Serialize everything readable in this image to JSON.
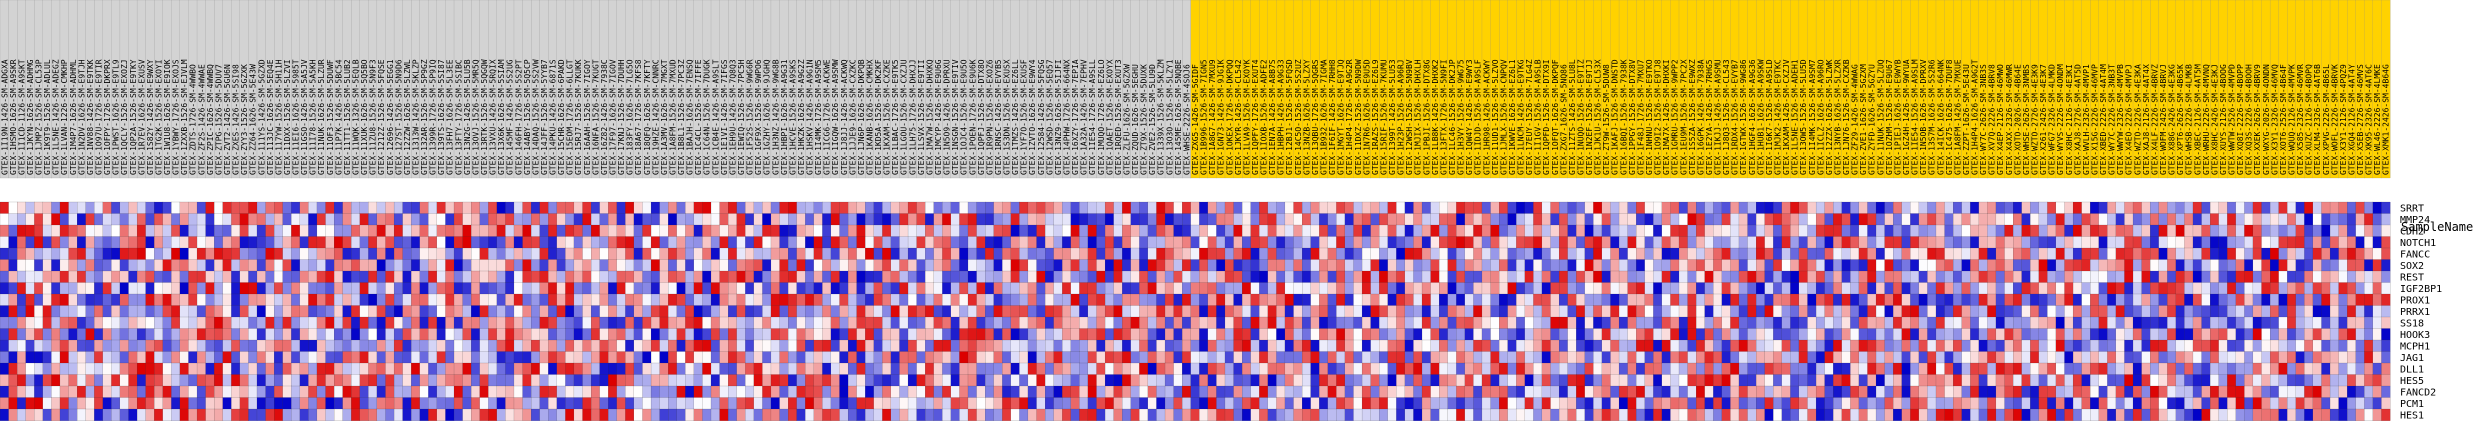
{
  "chart_data": {
    "type": "heatmap",
    "row_axis_label": "SampleName",
    "color_scale": {
      "low": "#0000c8",
      "mid": "#ffffff",
      "high": "#dc0000",
      "min": -1,
      "max": 1
    },
    "group_colors": {
      "normal": "#d3d3d3",
      "highlight": "#ffd200"
    },
    "rows": [
      "SRRT",
      "MMP24",
      "CDH2",
      "NOTCH1",
      "FANCC",
      "SOX2",
      "REST",
      "IGF2BP1",
      "PROX1",
      "PRRX1",
      "SS18",
      "HOOK3",
      "MCPH1",
      "JAG1",
      "DLL1",
      "HES5",
      "FANCD2",
      "PCM1",
      "HES1"
    ],
    "column_groups": [
      {
        "group": "normal",
        "columns": [
          "GTEX-1I19N-1426-SM-ADGXA",
          "GTEX-1HSMO-1626-SM-A9SKR",
          "GTEX-1I1CD-1126-SM-A9SKT",
          "GTEX-1JKYN-1626-SM-ADHMG",
          "GTEX-1JMPZ-1526-SM-CL53P",
          "GTEX-1K9T9-1526-SM-ADLUL",
          "GTEX-1L5NE-1426-SM-ADEGZ",
          "GTEX-1LVAN-1226-SM-CMKHP",
          "GTEX-1M4P7-1626-SM-ADHML",
          "GTEX-1N2DV-1626-SM-E9TJH",
          "GTEX-1NV88-1426-SM-E9TKK",
          "GTEX-1O97U-1726-SM-E9TIR",
          "GTEX-1OFPY-1726-SM-DKPRX",
          "GTEX-1PWST-1626-SM-E9TL9",
          "GTEX-1QCLY-1526-SM-EXOZJ",
          "GTEX-1QP2A-1526-SM-E9TKY",
          "GTEX-1R7EV-1626-SM-EXUSV",
          "GTEX-1S82Y-1426-SM-E9WXY",
          "GTEX-1TG2K-1526-SM-EXOYI",
          "GTEX-1W1U8-1626-SM-E9IOK",
          "GTEX-1YBWY-1726-SM-EXOJS",
          "GTEX-1ZXXB-1526-SM-EJVLM",
          "GTEX-ZDTS-1726-SM-4WWBO",
          "GTEX-ZF2S-1426-SM-4WWAE",
          "GTEX-ZPIC-1626-SM-4WWBQ",
          "GTEX-ZTPG-1526-SM-5DUV7",
          "GTEX-ZVT2-1426-SM-5GU6N",
          "GTEX-ZXES-1426-SM-5SI98",
          "GTEX-ZYY3-1526-SM-5GZXK",
          "GTEX-ZZ64-1626-SM-5E43W",
          "GTEX-111YS-1426-SM-5GZXD",
          "GTEX-113JC-1626-SM-5EQ4E",
          "GTEX-117YW-1526-SM-5H11H",
          "GTEX-11DXX-1526-SM-5LZVI",
          "GTEX-11EI6-1626-SM-5985T",
          "GTEX-11GSO-1426-SM-5A5JV",
          "GTEX-11I78-1526-SM-5A5KH",
          "GTEX-11NUK-1626-SM-5LZUR",
          "GTEX-11OF3-1526-SM-5DUWF",
          "GTEX-11P7K-1426-SM-5BC54",
          "GTEX-11TT1-1526-SM-5LUB2",
          "GTEX-11WQK-1326-SM-5EQLB",
          "GTEX-11XUK-1626-SM-5Q5BO",
          "GTEX-11ZU8-1526-SM-5N9F3",
          "GTEX-1212Z-1526-SM-5FQSE",
          "GTEX-12696-1426-SM-5EGG1",
          "GTEX-127ST-1526-SM-5N9D6",
          "GTEX-12ZZW-1626-SM-5LZWL",
          "GTEX-1313W-1426-SM-5KLZP",
          "GTEX-132AR-1526-SM-5P9GZ",
          "GTEX-1399R-1726-SM-5P9IQ",
          "GTEX-139TS-1626-SM-5SI87",
          "GTEX-13FH7-1626-SM-5L3EE",
          "GTEX-13FTY-1726-SM-5SIBC",
          "GTEX-13N2G-1426-SM-5LU5B",
          "GTEX-13OVJ-1526-SM-5MR5Q",
          "GTEX-13RTK-1526-SM-5QGQW",
          "GTEX-13VXU-1426-SM-5RQIX",
          "GTEX-13X6K-1626-SM-5SIAM",
          "GTEX-145MF-1426-SM-5S2UG",
          "GTEX-146FH-1726-SM-5S2PT",
          "GTEX-14ABY-1526-SM-5Q5CP",
          "GTEX-14DAQ-1526-SM-5S2VW",
          "GTEX-14JFF-1526-SM-5YYB7",
          "GTEX-14PKU-1426-SM-6871S",
          "GTEX-15CHR-1626-SM-6PAKD",
          "GTEX-15EOM-1726-SM-6LLGT",
          "GTEX-15RJ7-1526-SM-7KUKK",
          "GTEX-16AAH-1526-SM-7IGOY",
          "GTEX-16NFA-1526-SM-7KUGT",
          "GTEX-16Z82-1426-SM-7938C",
          "GTEX-17F97-1626-SM-7IGOV",
          "GTEX-17KNJ-1526-SM-7DUHH",
          "GTEX-183FY-1626-SM-7LG5O",
          "GTEX-18A67-1726-SM-7KFS8",
          "GTEX-18QFQ-1626-SM-7KFTY",
          "GTEX-19HZE-1426-SM-CNNRC",
          "GTEX-1A3MV-1626-SM-7MGXT",
          "GTEX-1A8FM-1526-SM-7MXUD",
          "GTEX-1B8L1-1526-SM-7PC3Z",
          "GTEX-1BAJH-1626-SM-7ENSQ",
          "GTEX-1C4CL-1526-SM-7IFFE",
          "GTEX-1C64N-1526-SM-7DUGK",
          "GTEX-1CB4E-1426-SM-A9SLT",
          "GTEX-1E1VI-1426-SM-7IFGS",
          "GTEX-1EH9U-1426-SM-7Q8Q3",
          "GTEX-1EWIQ-1526-SM-7PC5H",
          "GTEX-1F52S-1526-SM-9WG6R",
          "GTEX-1GF9X-1526-SM-9WPO6",
          "GTEX-1GZHY-1626-SM-9JGHQ",
          "GTEX-1H3NZ-1426-SM-9WG8B",
          "GTEX-1HBPI-1626-SM-A9G31",
          "GTEX-1HCVE-1526-SM-A9SKS",
          "GTEX-1HKZK-1626-SM-A9G2Z",
          "GTEX-1HSKV-1426-SM-A9G1N",
          "GTEX-1I4MK-1726-SM-A9SM5",
          "GTEX-1ICG6-1726-SM-ACKWE",
          "GTEX-1IGQW-1626-SM-A9SMW",
          "GTEX-1J8JJ-1426-SM-ACKWQ",
          "GTEX-1JJE9-1626-SM-CXZKC",
          "GTEX-1JN6P-1626-SM-DKPQB",
          "GTEX-1KANB-1626-SM-CMKHX",
          "GTEX-1KD5A-1526-SM-DK2KF",
          "GTEX-1KXAM-1526-SM-CXZKE",
          "GTEX-1LBAC-1726-SM-E9TK5",
          "GTEX-1LGOU-1526-SM-CXZJU",
          "GTEX-1LH75-1726-SM-DHXJJ",
          "GTEX-1LSVX-1526-SM-E9TII",
          "GTEX-1MA7W-1526-SM-DHXKQ",
          "GTEX-1MCYP-1426-SM-E9U6G",
          "GTEX-1N5O9-1426-SM-DPRXU",
          "GTEX-1NSGN-1526-SM-E9TIV",
          "GTEX-1OJC4-1526-SM-E9U5O",
          "GTEX-1POEN-1726-SM-E9U6K",
          "GTEX-1QPFJ-1526-SM-DTX8O",
          "GTEX-1R9PN-1526-SM-EXOZ6",
          "GTEX-1RNSC-1426-SM-EVYB5",
          "GTEX-1S3DN-1526-SM-EXUSX",
          "GTEX-1TMZS-1426-SM-EZ6LL",
          "GTEX-1YF7O-1526-SM-EXUSF",
          "GTEX-1ZVTO-1626-SM-E9WY4",
          "GTEX-12584-1426-SM-5FQSG",
          "GTEX-12WSD-1526-SM-5EQ57",
          "GTEX-13NZ9-1626-SM-5IJFI",
          "GTEX-14PHW-1726-SM-664NX",
          "GTEX-16XZY-1726-SM-7EPIA",
          "GTEX-1A32A-1426-SM-7EPHV",
          "GTEX-1IE54-1726-SM-A9SLL",
          "GTEX-1MUQO-1726-SM-EZ6LO",
          "GTEX-1QAET-1526-SM-EXOYX",
          "GTEX-1RQED-1526-SM-EXUT3",
          "GTEX-ZLFU-1626-SM-5GZXW",
          "GTEX-ZQUD-1626-SM-5EGHU",
          "GTEX-ZT9X-1526-SM-5DUXK",
          "GTEX-ZVE2-1526-SM-5LU9D",
          "GTEX-1339X-1526-SM-5KLZM",
          "GTEX-13O3O-1526-SM-5LZY1",
          "GTEX-145ME-1626-SM-5NQBE",
          "GTEX-WHSE-2226-SM-4SOJ6"
        ]
      },
      {
        "group": "highlight",
        "columns": [
          "GTEX-ZXG5-1426-SM-5GIDF",
          "GTEX-1B996-1526-SM-7IGN5",
          "GTEX-1A8G7-1426-SM-7MXU9",
          "GTEX-1GN73-1426-SM-9JGIK",
          "GTEX-1OKEX-1726-SM-DKPQQ",
          "GTEX-1JKYR-1426-SM-CL542",
          "GTEX-1LVA9-1526-SM-EXOYK",
          "GTEX-1QPFY-1726-SM-EXUT4",
          "GTEX-1IOXB-1526-SM-ADFE2",
          "GTEX-1EN7A-1426-SM-A8B7S",
          "GTEX-1HBPH-1426-SM-A9G33",
          "GTEX-12BJ1-1526-SM-5FQSD",
          "GTEX-14C5O-1526-SM-5S2UZ",
          "GTEX-13NZB-1626-SM-5LZXY",
          "GTEX-13QBU-1726-SM-5QGRS",
          "GTEX-1B932-1626-SM-7IGMA",
          "GTEX-1F6IF-1426-SM-7RHH8",
          "GTEX-1MGYT-1626-SM-E9TJQ",
          "GTEX-1H4P4-1726-SM-A9G2R",
          "GTEX-11DXZ-1526-SM-5N9DW",
          "GTEX-1N7R6-1626-SM-E9U5D",
          "GTEX-1RAZS-1526-SM-EZ6L9",
          "GTEX-15RIF-1526-SM-7KUMU",
          "GTEX-1399T-1426-SM-5LU53",
          "GTEX-1H23P-1526-SM-A96RJ",
          "GTEX-12WSH-1526-SM-5N9BV",
          "GTEX-1MJIX-1526-SM-DHXLH",
          "GTEX-1PBJI-1526-SM-DTX8G",
          "GTEX-1LB8K-1426-SM-DHXK2",
          "GTEX-13FTX-1726-SM-5N9FI",
          "GTEX-1LC46-1526-SM-DK2JP",
          "GTEX-1H3VY-1526-SM-9WG75",
          "GTEX-1QW4Y-1426-SM-E9WY3",
          "GTEX-1IDJD-1526-SM-A9SLF",
          "GTEX-1HR98-1426-SM-ACKWY",
          "GTEX-11UD1-1526-SM-5LZVO",
          "GTEX-1JMLX-1526-SM-CNPQV",
          "GTEX-1KWVE-1626-SM-EZ6L1",
          "GTEX-1LNCM-1426-SM-E9TKG",
          "GTEX-17EUY-1526-SM-7LG4Z",
          "GTEX-1I1GV-1526-SM-A9SLB",
          "GTEX-1QPFD-1526-SM-DTX9I",
          "GTEX-1OFQT-1626-SM-DKPQF",
          "GTEX-ZXG7-1626-SM-5NQ86",
          "GTEX-11ZTS-1426-SM-5LU8L",
          "GTEX-1NUQO-1526-SM-E9TIZ",
          "GTEX-1N2EF-1526-SM-E9TJJ",
          "GTEX-1JK1U-1526-SM-CL53X",
          "GTEX-ZT9W-1526-SM-5DUW8",
          "GTEX-1KAFJ-1526-SM-DNSTD",
          "GTEX-16BQI-1526-SM-7938K",
          "GTEX-1PPGY-1526-SM-DTX8V",
          "GTEX-1F48J-1726-SM-7MXU7",
          "GTEX-1NHNU-1526-SM-E9TKO",
          "GTEX-1O9I2-1526-SM-E9TJ8",
          "GTEX-1MA7X-1426-SM-DHXKI",
          "GTEX-1GMRU-1526-SM-9WPP2",
          "GTEX-1EU9M-1526-SM-7PC2X",
          "GTEX-1S5ZA-1526-SM-E9WXZ",
          "GTEX-16GPK-1426-SM-7938A",
          "GTEX-1E2YA-1426-SM-7RHG5",
          "GTEX-1IKJJ-1426-SM-A9SMU",
          "GTEX-1J8Q3-1526-SM-CL543",
          "GTEX-1RDX4-1526-SM-EVYB7",
          "GTEX-1GTWX-1526-SM-9WG86",
          "GTEX-1HGF4-1626-SM-A9G36",
          "GTEX-1HUB1-1626-SM-A9SKW",
          "GTEX-1I6K7-1526-SM-A9SLD",
          "GTEX-1MJK2-1426-SM-E9TKC",
          "GTEX-1KXAM-1426-SM-CXZJV",
          "GTEX-1L5NE-1526-SM-ADEH1",
          "GTEX-13OW5-1526-SM-5LU5D",
          "GTEX-1I4MK-1526-SM-A9SM7",
          "GTEX-1ICLZ-1626-SM-A96RO",
          "GTEX-12ZZX-1626-SM-5LZWK",
          "GTEX-13NYB-1626-SM-5LZXR",
          "GTEX-1JN76-1526-SM-CXZKB",
          "GTEX-ZF29-1426-SM-4WWAG",
          "GTEX-ZVE1-1626-SM-5GZXM",
          "GTEX-ZYFD-1626-SM-5GZYU",
          "GTEX-11NUK-1526-SM-5LZUQ",
          "GTEX-1OZHM-1526-SM-E9U67",
          "GTEX-1PIEJ-1626-SM-E9WYB",
          "GTEX-1GZ4H-1426-SM-9WYUA",
          "GTEX-1IE54-1526-SM-A9SLM",
          "GTEX-1N5OB-1626-SM-DPRXV",
          "GTEX-13S7M-1626-SM-5S2R6",
          "GTEX-14ICK-1626-SM-664NK",
          "GTEX-1C475-1626-SM-7DUF8",
          "GTEX-1A8FM-1426-SM-7MXUE",
          "GTEX-ZZPT-1626-SM-5E43U",
          "GTEX-1H4P4-1626-SM-A9G2T",
          "GTEX-WY7C-2626-SM-3NB3S",
          "GTEX-XV7Q-2226-SM-4BRV8",
          "GTEX-X4EP-2126-SM-46MWO",
          "GTEX-X4XX-2326-SM-46MWR",
          "GTEX-XOTO-2026-SM-4B64E",
          "GTEX-WHSE-2626-SM-3NMBS",
          "GTEX-WZTO-2726-SM-4E3K9",
          "GTEX-X261-2426-SM-4E3K7",
          "GTEX-WFG7-2326-SM-4LMKD",
          "GTEX-WYVS-2226-SM-4ONDM",
          "GTEX-X8HC-2126-SM-4E3KI",
          "GTEX-XAJ8-2726-SM-4AT5D",
          "GTEX-WVLH-2326-SM-4MVP1",
          "GTEX-X15G-2226-SM-46MVP",
          "GTEX-XBED-2226-SM-4AT4M",
          "GTEX-WY7C-2226-SM-3NB3T",
          "GTEX-WWYW-2326-SM-4MVPB",
          "GTEX-X4EO-2226-SM-4MVPJ",
          "GTEX-WZTO-2226-SM-4E3KA",
          "GTEX-XAJ8-2126-SM-4AT4X",
          "GTEX-X4LF-2226-SM-4BRVZ",
          "GTEX-WOFM-2426-SM-4BRVJ",
          "GTEX-X88G-2426-SM-4E3KG",
          "GTEX-XPT6-2626-SM-4B65K",
          "GTEX-WHSB-2226-SM-4LMKB",
          "GTEX-XBEC-2126-SM-4AT5M",
          "GTEX-WRHU-2226-SM-4MVNQ",
          "GTEX-X8HC-2426-SM-4E3KJ",
          "GTEX-XUYS-2126-SM-4BOOG",
          "GTEX-WWTW-2526-SM-4MVPD",
          "GTEX-XQ8I-2226-SM-4BOPP",
          "GTEX-XQ3S-2226-SM-4BOOH",
          "GTEX-XXEK-2626-SM-4BRV9",
          "GTEX-WXYG-2026-SM-4ONDN",
          "GTEX-X3Y1-2326-SM-46MVQ",
          "GTEX-XOT6-2526-SM-4B64F",
          "GTEX-WQUQ-2126-SM-4MVPK",
          "GTEX-X585-2326-SM-46MVR",
          "GTEX-XUZC-2126-SM-4BOPQ",
          "GTEX-XLM4-2326-SM-4AT6B",
          "GTEX-XPVG-2226-SM-4B65L",
          "GTEX-WOFL-2226-SM-4BRVK",
          "GTEX-X3Y1-2126-SM-4PQZ9",
          "GTEX-XGQ4-2126-SM-4AT4Y",
          "GTEX-X5EB-2726-SM-46MVS",
          "GTEX-XK95-2326-SM-4AT6C",
          "GTEX-WL46-2226-SM-4LMKE",
          "GTEX-XMK1-2426-SM-4B64G"
        ]
      }
    ]
  }
}
